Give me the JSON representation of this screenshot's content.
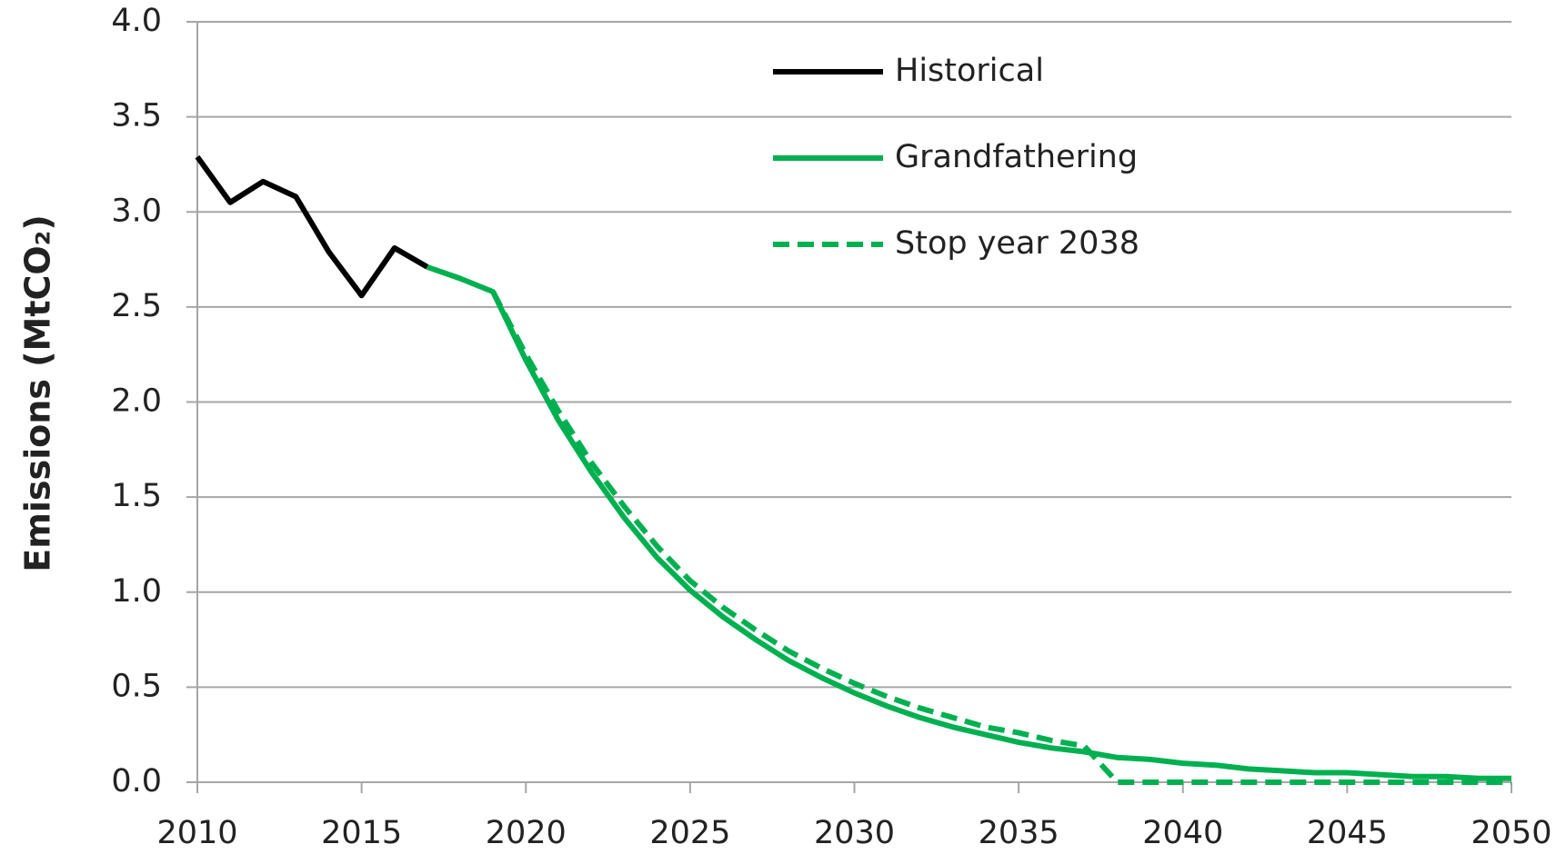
{
  "chart_data": {
    "type": "line",
    "ylabel": "Emissions (MtCO₂)",
    "xlim": [
      2010,
      2050
    ],
    "xticks": [
      2010,
      2015,
      2020,
      2025,
      2030,
      2035,
      2040,
      2045,
      2050
    ],
    "ylim": [
      0,
      4
    ],
    "yticks": [
      {
        "value": 0,
        "label": "0.0"
      },
      0.5,
      {
        "value": 1,
        "label": "1.0"
      },
      1.5,
      {
        "value": 2,
        "label": "2.0"
      },
      2.5,
      {
        "value": 3,
        "label": "3.0"
      },
      3.5,
      {
        "value": 4,
        "label": "4.0"
      }
    ],
    "grid": true,
    "legend": "top",
    "series": [
      {
        "name": "Historical",
        "color": "#000000",
        "line_style": "solid",
        "x": [
          2010,
          2011,
          2012,
          2013,
          2014,
          2015,
          2016,
          2017
        ],
        "values": [
          3.29,
          3.05,
          3.16,
          3.08,
          2.79,
          2.56,
          2.81,
          2.71
        ]
      },
      {
        "name": "Grandfathering",
        "color": "#00b050",
        "line_style": "solid",
        "x": [
          2017,
          2018,
          2019,
          2020,
          2021,
          2022,
          2023,
          2024,
          2025,
          2026,
          2027,
          2028,
          2029,
          2030,
          2031,
          2032,
          2033,
          2034,
          2035,
          2036,
          2037,
          2038,
          2039,
          2040,
          2041,
          2042,
          2043,
          2044,
          2045,
          2046,
          2047,
          2048,
          2049,
          2050
        ],
        "values": [
          2.71,
          2.65,
          2.58,
          2.22,
          1.9,
          1.63,
          1.39,
          1.18,
          1.01,
          0.87,
          0.75,
          0.64,
          0.55,
          0.47,
          0.4,
          0.34,
          0.29,
          0.25,
          0.21,
          0.18,
          0.16,
          0.13,
          0.12,
          0.1,
          0.09,
          0.07,
          0.06,
          0.05,
          0.05,
          0.04,
          0.03,
          0.03,
          0.02,
          0.02
        ]
      },
      {
        "name": "Stop year 2038",
        "color": "#00b050",
        "line_style": "dashed",
        "x": [
          2019,
          2020,
          2021,
          2022,
          2023,
          2024,
          2025,
          2026,
          2027,
          2028,
          2029,
          2030,
          2031,
          2032,
          2033,
          2034,
          2035,
          2036,
          2037,
          2038,
          2039,
          2040,
          2041,
          2042,
          2043,
          2044,
          2045,
          2046,
          2047,
          2048,
          2049,
          2050
        ],
        "values": [
          2.58,
          2.25,
          1.95,
          1.68,
          1.45,
          1.24,
          1.06,
          0.92,
          0.8,
          0.69,
          0.6,
          0.52,
          0.45,
          0.39,
          0.34,
          0.29,
          0.26,
          0.22,
          0.19,
          0,
          0,
          0,
          0,
          0,
          0,
          0,
          0,
          0,
          0,
          0,
          0,
          0
        ]
      }
    ]
  }
}
